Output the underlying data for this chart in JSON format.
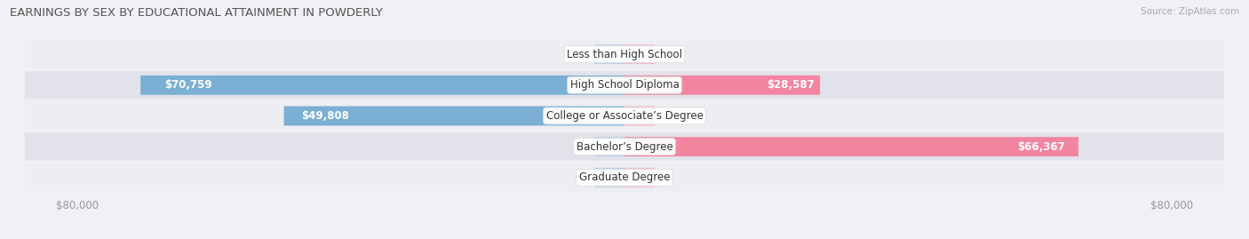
{
  "title": "EARNINGS BY SEX BY EDUCATIONAL ATTAINMENT IN POWDERLY",
  "source": "Source: ZipAtlas.com",
  "categories": [
    "Less than High School",
    "High School Diploma",
    "College or Associate’s Degree",
    "Bachelor’s Degree",
    "Graduate Degree"
  ],
  "male_values": [
    0,
    70759,
    49808,
    0,
    0
  ],
  "female_values": [
    0,
    28587,
    0,
    66367,
    0
  ],
  "max_val": 80000,
  "male_color": "#7bafd4",
  "female_color": "#f285a0",
  "stub_color_male": "#b8cfe8",
  "stub_color_female": "#f5b8cb",
  "row_bg_color_odd": "#ededf2",
  "row_bg_color_even": "#e2e2ea",
  "bg_color": "#f0f0f5",
  "title_color": "#555555",
  "axis_label_color": "#999999",
  "label_value_fontsize": 8.5,
  "cat_label_fontsize": 8.5,
  "title_fontsize": 9.5,
  "source_fontsize": 7.5,
  "figsize": [
    14.06,
    2.69
  ],
  "dpi": 100
}
